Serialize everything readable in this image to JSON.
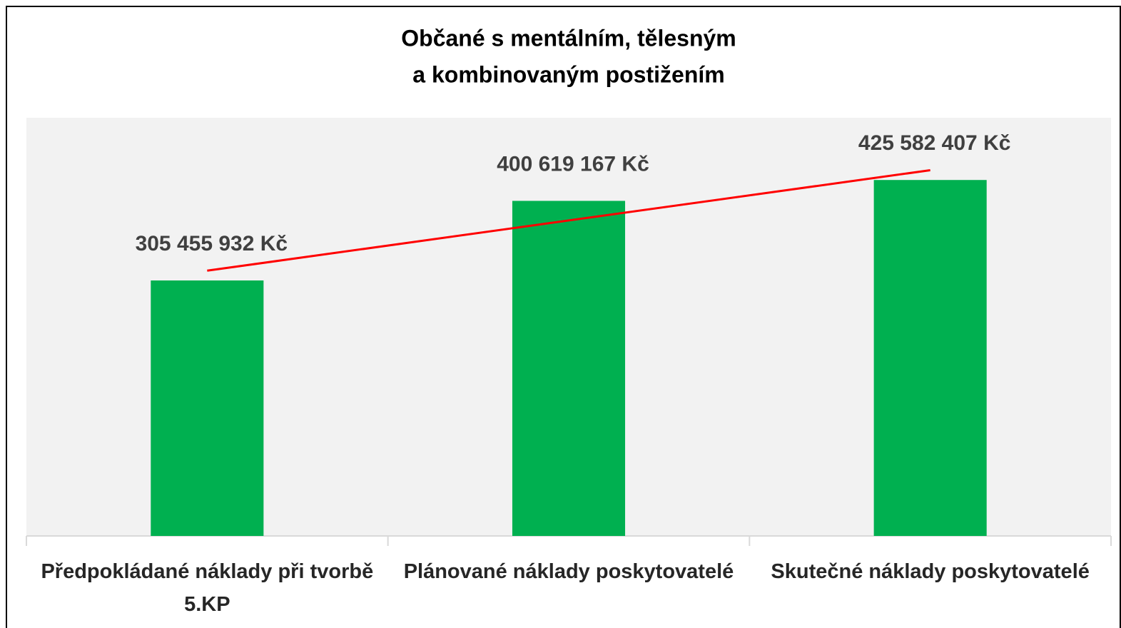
{
  "chart_data": {
    "type": "bar",
    "title": [
      "Občané s mentálním, tělesným",
      "a kombinovaným postižením"
    ],
    "categories": [
      "Předpokládané náklady při tvorbě 5.KP",
      "Plánované náklady poskytovatelé",
      "Skutečné náklady poskytovatelé"
    ],
    "values": [
      305455932,
      400619167,
      425582407
    ],
    "value_labels": [
      "305 455 932 Kč",
      "400 619 167 Kč",
      "425 582 407 Kč"
    ],
    "color": "#00b050",
    "ylim": [
      0,
      500000000
    ],
    "trendline": {
      "type": "linear",
      "color": "#ff0000"
    }
  }
}
